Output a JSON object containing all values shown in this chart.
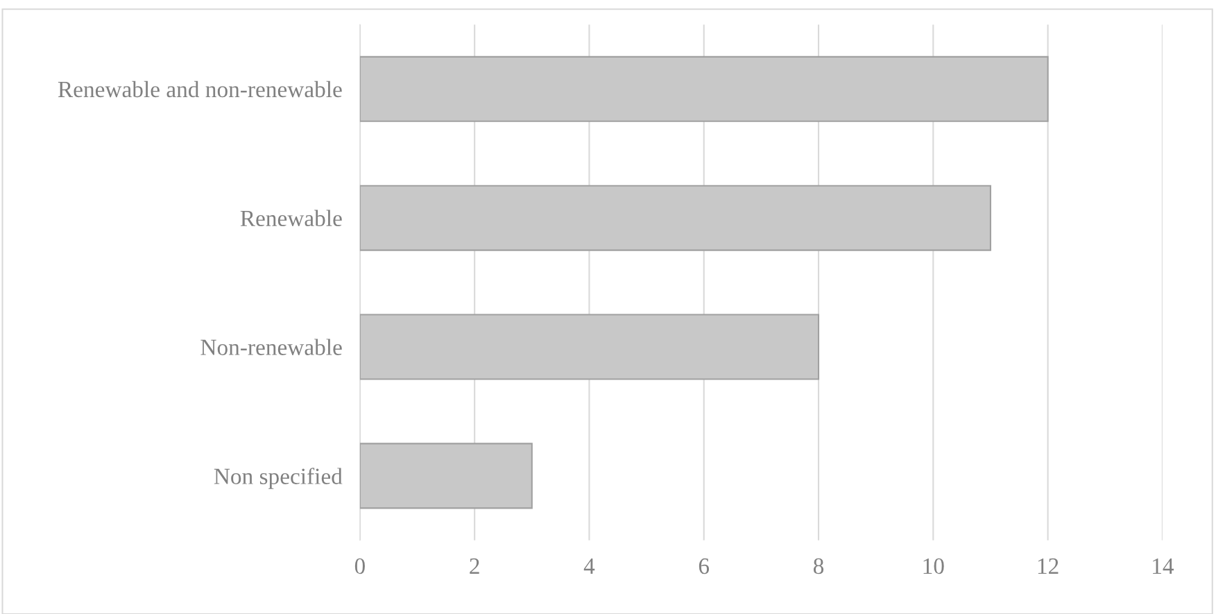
{
  "chart_data": {
    "type": "bar",
    "orientation": "horizontal",
    "categories": [
      "Renewable and non-renewable",
      "Renewable",
      "Non-renewable",
      "Non specified"
    ],
    "values": [
      12,
      11,
      8,
      3
    ],
    "color": "#c8c8c8",
    "xlim": [
      0,
      14
    ],
    "xticks": [
      0,
      2,
      4,
      6,
      8,
      10,
      12,
      14
    ],
    "grid": "x"
  }
}
